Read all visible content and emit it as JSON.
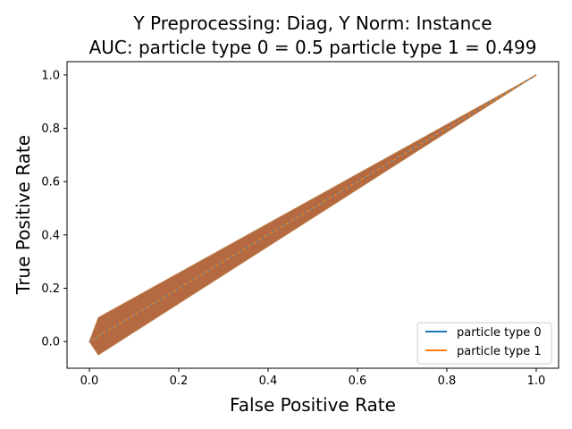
{
  "chart_data": {
    "type": "line",
    "title_lines": [
      "Y Preprocessing: Diag, Y Norm: Instance",
      "AUC: particle type 0 = 0.5 particle type 1 = 0.499"
    ],
    "xlabel": "False Positive Rate",
    "ylabel": "True Positive Rate",
    "xlim": [
      -0.05,
      1.05
    ],
    "ylim": [
      -0.1,
      1.05
    ],
    "xticks": [
      0.0,
      0.2,
      0.4,
      0.6,
      0.8,
      1.0
    ],
    "yticks": [
      0.0,
      0.2,
      0.4,
      0.6,
      0.8,
      1.0
    ],
    "grid": false,
    "legend_position": "lower-right",
    "series": [
      {
        "name": "particle type 0",
        "color": "#1f77b4",
        "x": [
          0.0,
          1.0
        ],
        "y": [
          0.0,
          1.0
        ],
        "band_upper": [
          [
            0.0,
            0.0
          ],
          [
            0.02,
            0.09
          ],
          [
            1.0,
            1.0
          ]
        ],
        "band_lower": [
          [
            0.0,
            0.0
          ],
          [
            0.02,
            -0.05
          ],
          [
            1.0,
            1.0
          ]
        ]
      },
      {
        "name": "particle type 1",
        "color": "#ff7f0e",
        "x": [
          0.0,
          1.0
        ],
        "y": [
          0.0,
          1.0
        ],
        "band_upper": [
          [
            0.0,
            0.0
          ],
          [
            0.02,
            0.09
          ],
          [
            1.0,
            1.0
          ]
        ],
        "band_lower": [
          [
            0.0,
            0.0
          ],
          [
            0.02,
            -0.05
          ],
          [
            1.0,
            1.0
          ]
        ]
      }
    ],
    "band_color": "#b05f35",
    "diagonal_style": "dashed",
    "diagonal_color": "#7f7f7f"
  }
}
